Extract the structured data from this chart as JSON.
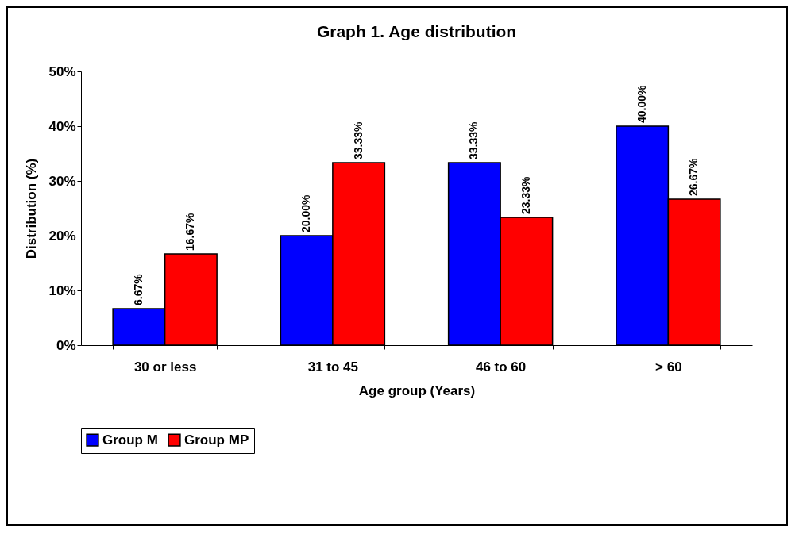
{
  "chart_data": {
    "type": "bar",
    "title": "Graph 1. Age distribution",
    "xlabel": "Age group (Years)",
    "ylabel": "Distribution (%)",
    "categories": [
      "30 or less",
      "31 to 45",
      "46 to 60",
      "> 60"
    ],
    "series": [
      {
        "name": "Group M",
        "color": "#0000ff",
        "values": [
          6.67,
          20.0,
          33.33,
          40.0
        ],
        "value_labels": [
          "6.67%",
          "20.00%",
          "33.33%",
          "40.00%"
        ]
      },
      {
        "name": "Group MP",
        "color": "#ff0000",
        "values": [
          16.67,
          33.33,
          23.33,
          26.67
        ],
        "value_labels": [
          "16.67%",
          "33.33%",
          "23.33%",
          "26.67%"
        ]
      }
    ],
    "ylim": [
      0,
      50
    ],
    "yticks": [
      {
        "value": 0,
        "label": "0%"
      },
      {
        "value": 10,
        "label": "10%"
      },
      {
        "value": 20,
        "label": "20%"
      },
      {
        "value": 30,
        "label": "30%"
      },
      {
        "value": 40,
        "label": "40%"
      },
      {
        "value": 50,
        "label": "50%"
      }
    ],
    "grid": false,
    "legend": "bottom"
  }
}
